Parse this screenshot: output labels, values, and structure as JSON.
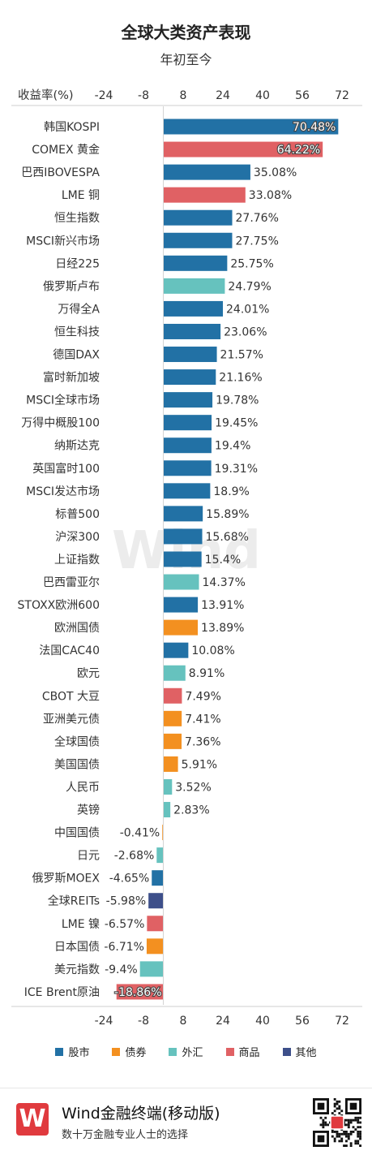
{
  "header": {
    "title": "全球大类资产表现",
    "subtitle": "年初至今"
  },
  "colors": {
    "股市": "#2271a5",
    "债券": "#f39020",
    "外汇": "#66c2be",
    "商品": "#e06164",
    "其他": "#3d4f8a"
  },
  "chart_data": {
    "type": "bar",
    "orientation": "horizontal",
    "title": "全球大类资产表现",
    "subtitle": "年初至今",
    "axis_label": "收益率(%)",
    "xlim": [
      -24,
      72
    ],
    "ticks": [
      "-24",
      "-8",
      "8",
      "24",
      "40",
      "56",
      "72"
    ],
    "tick_values": [
      -24,
      -8,
      8,
      24,
      40,
      56,
      72
    ],
    "categories": [
      "韩国KOSPI",
      "COMEX 黄金",
      "巴西IBOVESPA",
      "LME 铜",
      "恒生指数",
      "MSCI新兴市场",
      "日经225",
      "俄罗斯卢布",
      "万得全A",
      "恒生科技",
      "德国DAX",
      "富时新加坡",
      "MSCI全球市场",
      "万得中概股100",
      "纳斯达克",
      "英国富时100",
      "MSCI发达市场",
      "标普500",
      "沪深300",
      "上证指数",
      "巴西雷亚尔",
      "STOXX欧洲600",
      "欧洲国债",
      "法国CAC40",
      "欧元",
      "CBOT 大豆",
      "亚洲美元债",
      "全球国债",
      "美国国债",
      "人民币",
      "英镑",
      "中国国债",
      "日元",
      "俄罗斯MOEX",
      "全球REITs",
      "LME 镍",
      "日本国债",
      "美元指数",
      "ICE Brent原油"
    ],
    "values": [
      70.48,
      64.22,
      35.08,
      33.08,
      27.76,
      27.75,
      25.75,
      24.79,
      24.01,
      23.06,
      21.57,
      21.16,
      19.78,
      19.45,
      19.4,
      19.31,
      18.9,
      15.89,
      15.68,
      15.4,
      14.37,
      13.91,
      13.89,
      10.08,
      8.91,
      7.49,
      7.41,
      7.36,
      5.91,
      3.52,
      2.83,
      -0.41,
      -2.68,
      -4.65,
      -5.98,
      -6.57,
      -6.71,
      -9.4,
      -18.86
    ],
    "value_labels": [
      "70.48%",
      "64.22%",
      "35.08%",
      "33.08%",
      "27.76%",
      "27.75%",
      "25.75%",
      "24.79%",
      "24.01%",
      "23.06%",
      "21.57%",
      "21.16%",
      "19.78%",
      "19.45%",
      "19.4%",
      "19.31%",
      "18.9%",
      "15.89%",
      "15.68%",
      "15.4%",
      "14.37%",
      "13.91%",
      "13.89%",
      "10.08%",
      "8.91%",
      "7.49%",
      "7.41%",
      "7.36%",
      "5.91%",
      "3.52%",
      "2.83%",
      "-0.41%",
      "-2.68%",
      "-4.65%",
      "-5.98%",
      "-6.57%",
      "-6.71%",
      "-9.4%",
      "-18.86%"
    ],
    "groups": [
      "股市",
      "商品",
      "股市",
      "商品",
      "股市",
      "股市",
      "股市",
      "外汇",
      "股市",
      "股市",
      "股市",
      "股市",
      "股市",
      "股市",
      "股市",
      "股市",
      "股市",
      "股市",
      "股市",
      "股市",
      "外汇",
      "股市",
      "债券",
      "股市",
      "外汇",
      "商品",
      "债券",
      "债券",
      "债券",
      "外汇",
      "外汇",
      "债券",
      "外汇",
      "股市",
      "其他",
      "商品",
      "债券",
      "外汇",
      "商品"
    ],
    "legend": [
      "股市",
      "债券",
      "外汇",
      "商品",
      "其他"
    ]
  },
  "watermark": "Wind",
  "footer": {
    "logo": "W",
    "app_name": "Wind金融终端(移动版)",
    "slogan": "数十万金融专业人士的选择"
  }
}
